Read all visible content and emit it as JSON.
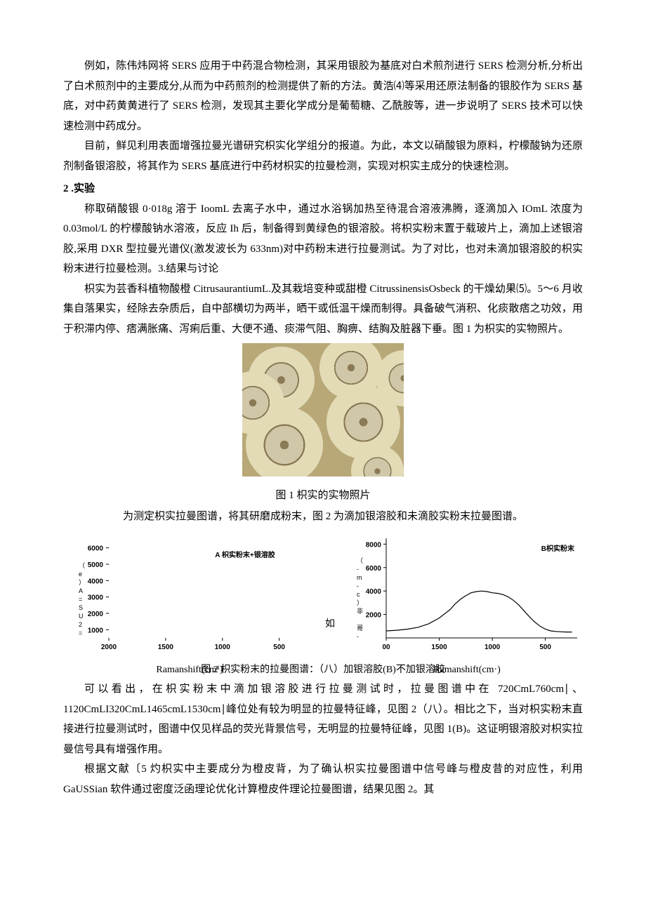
{
  "paragraphs": {
    "p1": "例如，陈伟炜网将 SERS 应用于中药混合物检测，其采用银胶为基底对白术煎剂进行 SERS 检测分析,分析出了白术煎剂中的主要成分,从而为中药煎剂的检测提供了新的方法。黄浩⑷等采用还原法制备的银胶作为 SERS 基底，对中药黄黄进行了 SERS 检测，发现其主要化学成分是葡萄糖、乙酰胺等，进一步说明了 SERS 技术可以快速检测中药成分。",
    "p2": "目前，鲜见利用表面增强拉曼光谱研究枳实化学组分的报道。为此，本文以硝酸银为原料，柠檬酸钠为还原剂制备银溶胶，将其作为 SERS 基底进行中药材枳实的拉曼检测，实现对枳实主成分的快速检测。",
    "sec2": "2 .实验",
    "p3": "称取硝酸银 0·018g 溶于 IoomL 去离子水中，通过水浴锅加热至待混合溶液沸腾，逐滴加入 IOmL 浓度为 0.03mol/L 的柠檬酸钠水溶液，反应 Ih 后，制备得到黄绿色的银溶胶。将枳实粉末置于载玻片上，滴加上述银溶胶,采用 DXR 型拉曼光谱仪(激发波长为 633nm)对中药粉末进行拉曼测试。为了对比，也对未滴加银溶胶的枳实粉末进行拉曼检测。3.结果与讨论",
    "p4": "枳实为芸香科植物酸橙 CitrusaurantiumL.及其栽培变种或甜橙 CitrussinensisOsbeck 的干燥幼果⑸。5～6 月收集自落果实，经除去杂质后，自中部横切为两半，晒干或低温干燥而制得。具备破气消积、化痰散痞之功效，用于积滞内停、痞满胀痛、泻痢后重、大便不通、痰滞气阻、胸痹、结胸及脏器下垂。图 1 为枳实的实物照片。",
    "fig1_caption": "图 1 枳实的实物照片",
    "p5": "为测定枳实拉曼图谱，将其研磨成粉末，图 2 为滴加银溶胶和未滴胶实粉末拉曼图谱。",
    "fig2_caption": "图 2 枳实粉末的拉曼图谱：（八）加银溶胶(B)不加银溶胶",
    "p6": "可以看出，在枳实粉末中滴加银溶胶进行拉曼测试时，拉曼图谱中在 720CmL760cm∣、1120CmLI320CmL1465cmL1530cm∣峰位处有较为明显的拉曼特征峰，见图 2（八）。相比之下，当对枳实粉末直接进行拉曼测试时，图谱中仅见样品的荧光背景信号，无明显的拉曼特征峰，见图 1(B)。这证明银溶胶对枳实拉曼信号具有增强作用。",
    "p7": "根据文献〔5 灼枳实中主要成分为橙皮背，为了确认枳实拉曼图谱中信号峰与橙皮昔的对应性，利用 GaUSSian 软件通过密度泛函理论优化计算橙皮件理论拉曼图谱，结果见图 2。其"
  },
  "chartA": {
    "type": "line",
    "title": "A 枳实粉末+银溶胶",
    "title_fontsize": 10,
    "ylabel": "（e）A=SU2=",
    "xlabel": "Ramanshift(cm¹)",
    "y_ticks": [
      1000,
      2000,
      3000,
      4000,
      5000,
      6000
    ],
    "x_ticks": [
      2000,
      1500,
      1000,
      500
    ],
    "ylim": [
      500,
      6500
    ],
    "xlim_reversed": true,
    "tick_fontsize": 10,
    "tick_weight": "bold",
    "axis_color": "#000000",
    "background_color": "#ffffff",
    "line_color": "#000000"
  },
  "chartB": {
    "type": "line",
    "title": "B枳实粉末",
    "title_fontsize": 10,
    "ylabel": "（-m-c）非 哥-",
    "xlabel": "Ramanshift(cm·)",
    "y_ticks": [
      2000,
      4000,
      6000,
      8000
    ],
    "x_ticks_shown": [
      "00",
      "1500",
      "1000",
      "500"
    ],
    "ylim": [
      0,
      8500
    ],
    "tick_fontsize": 10,
    "tick_weight": "bold",
    "axis_color": "#000000",
    "background_color": "#ffffff",
    "line_color": "#000000",
    "curve_points": [
      [
        2000,
        600
      ],
      [
        1900,
        650
      ],
      [
        1800,
        750
      ],
      [
        1700,
        900
      ],
      [
        1600,
        1200
      ],
      [
        1500,
        1700
      ],
      [
        1400,
        2400
      ],
      [
        1350,
        2900
      ],
      [
        1300,
        3300
      ],
      [
        1250,
        3600
      ],
      [
        1200,
        3850
      ],
      [
        1150,
        3950
      ],
      [
        1100,
        4000
      ],
      [
        1050,
        3950
      ],
      [
        1000,
        3850
      ],
      [
        950,
        3800
      ],
      [
        900,
        3700
      ],
      [
        850,
        3500
      ],
      [
        800,
        3200
      ],
      [
        750,
        2800
      ],
      [
        700,
        2300
      ],
      [
        650,
        1800
      ],
      [
        600,
        1350
      ],
      [
        550,
        1000
      ],
      [
        500,
        750
      ],
      [
        450,
        600
      ],
      [
        400,
        550
      ],
      [
        350,
        520
      ],
      [
        300,
        500
      ],
      [
        250,
        500
      ]
    ]
  },
  "mid_word": "如"
}
